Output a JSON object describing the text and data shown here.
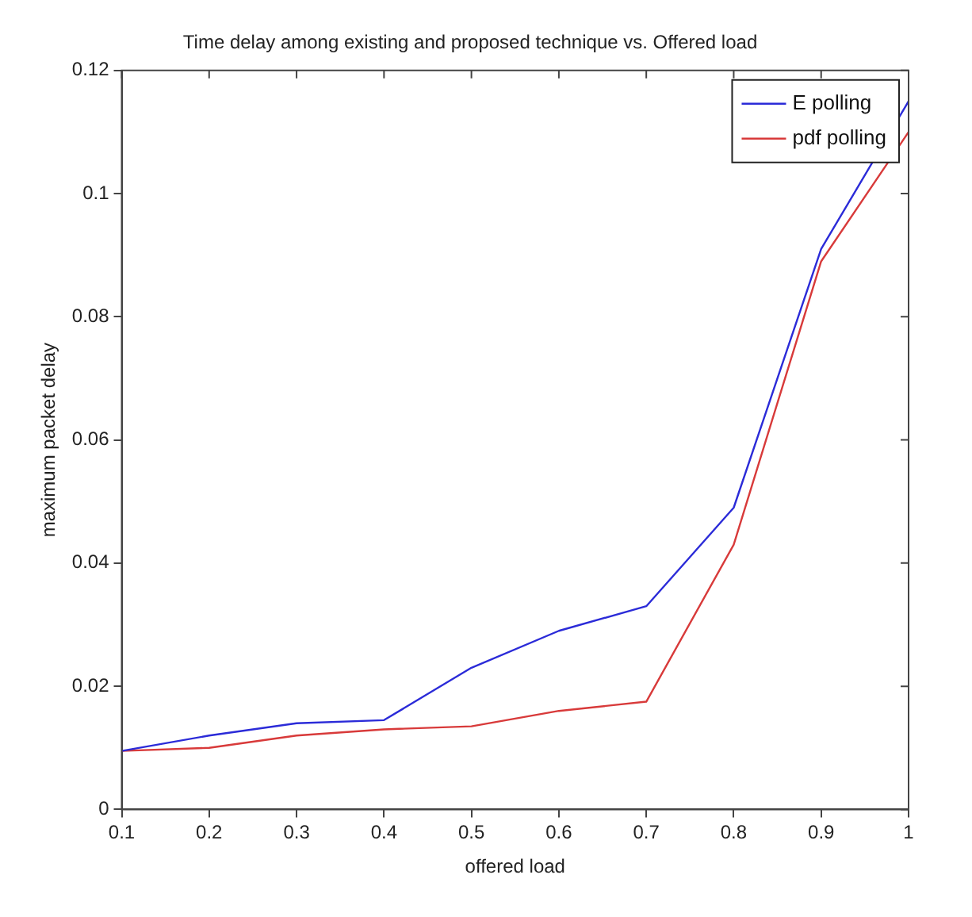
{
  "chart_data": {
    "type": "line",
    "title": "Time delay among existing and proposed technique vs. Offered load",
    "xlabel": "offered load",
    "ylabel": "maximum packet delay",
    "x": [
      0.1,
      0.2,
      0.3,
      0.4,
      0.5,
      0.6,
      0.7,
      0.8,
      0.9,
      1.0
    ],
    "series": [
      {
        "name": "E polling",
        "color": "#2b2bd8",
        "values": [
          0.0095,
          0.012,
          0.014,
          0.0145,
          0.023,
          0.029,
          0.033,
          0.049,
          0.091,
          0.115
        ]
      },
      {
        "name": "pdf polling",
        "color": "#d83a3a",
        "values": [
          0.0095,
          0.01,
          0.012,
          0.013,
          0.0135,
          0.016,
          0.0175,
          0.043,
          0.089,
          0.11
        ]
      }
    ],
    "xlim": [
      0.1,
      1
    ],
    "xticks": [
      0.1,
      0.2,
      0.3,
      0.4,
      0.5,
      0.6,
      0.7,
      0.8,
      0.9,
      1
    ],
    "ylim": [
      0,
      0.12
    ],
    "yticks": [
      0,
      0.02,
      0.04,
      0.06,
      0.08,
      0.1,
      0.12
    ],
    "grid": false,
    "legend": "top right",
    "marker": "none",
    "line_style": "solid"
  }
}
